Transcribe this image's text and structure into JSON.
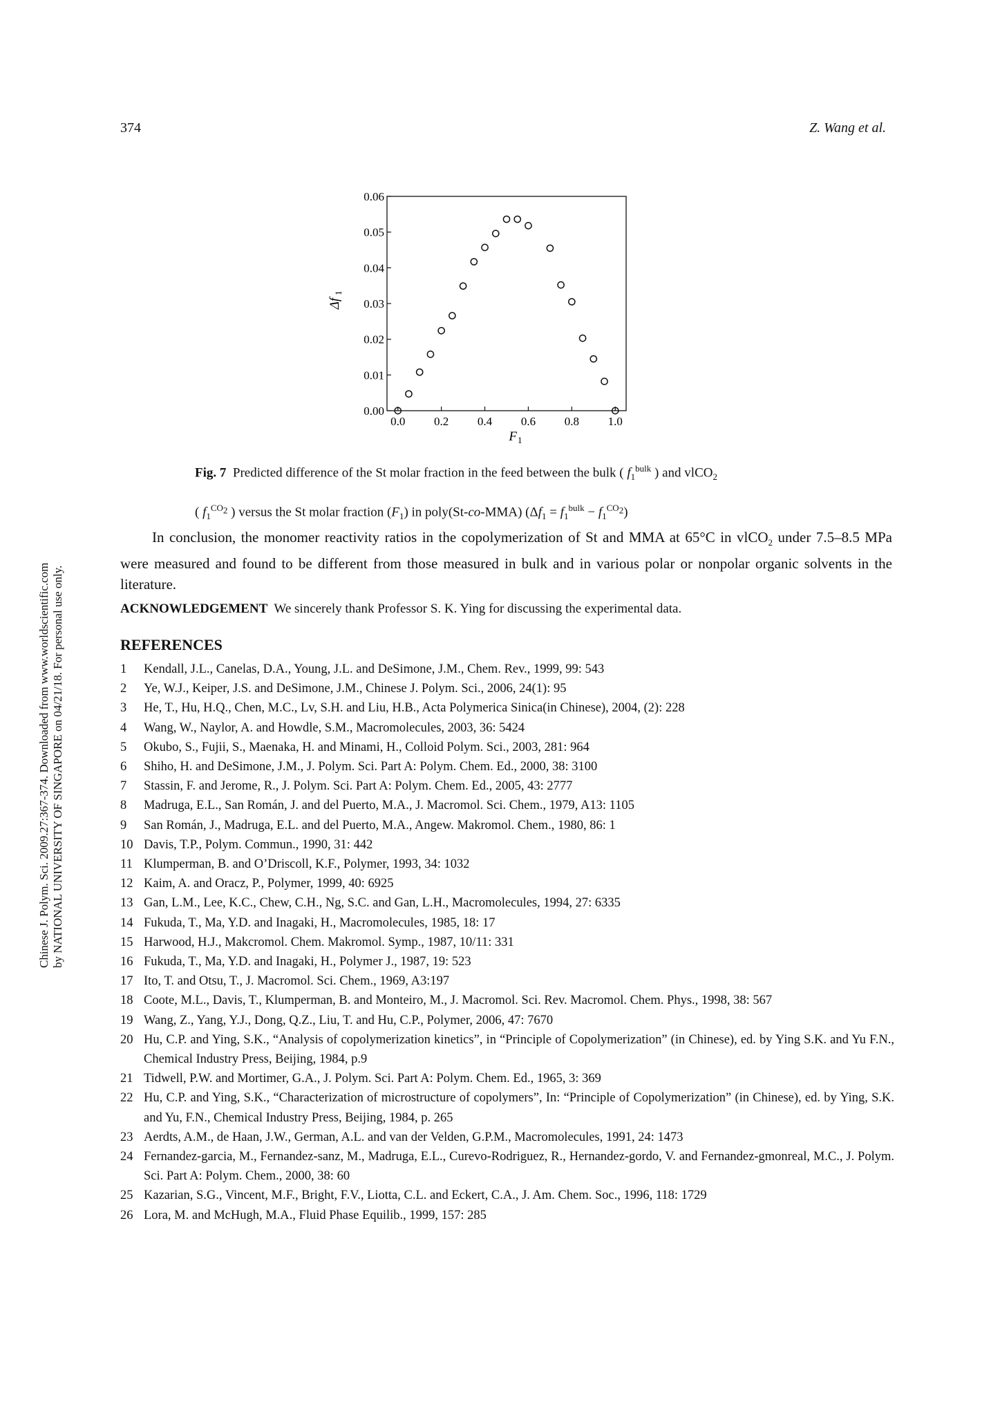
{
  "header": {
    "page_number": "374",
    "author": "Z. Wang et al."
  },
  "sidebar_note": {
    "line1": "Chinese J. Polym. Sci. 2009.27:367-374. Downloaded from www.worldscientific.com",
    "line2": "by NATIONAL UNIVERSITY OF SINGAPORE on 04/21/18. For personal use only."
  },
  "chart_data": {
    "type": "scatter",
    "xlabel": "F",
    "xlabel_sub": "1",
    "ylabel": "Δf",
    "ylabel_sub": "1",
    "xlim": [
      -0.05,
      1.05
    ],
    "ylim": [
      0.0,
      0.06
    ],
    "x_ticks": [
      "0.0",
      "0.2",
      "0.4",
      "0.6",
      "0.8",
      "1.0"
    ],
    "x_tick_values": [
      0.0,
      0.2,
      0.4,
      0.6,
      0.8,
      1.0
    ],
    "y_ticks": [
      "0.00",
      "0.01",
      "0.02",
      "0.03",
      "0.04",
      "0.05",
      "0.06"
    ],
    "y_tick_values": [
      0.0,
      0.01,
      0.02,
      0.03,
      0.04,
      0.05,
      0.06
    ],
    "series": [
      {
        "x": [
          0.0,
          0.05,
          0.1,
          0.15,
          0.2,
          0.25,
          0.3,
          0.35,
          0.4,
          0.45,
          0.5,
          0.55,
          0.6,
          0.7,
          0.75,
          0.8,
          0.85,
          0.9,
          0.95,
          1.0
        ],
        "y": [
          0.0,
          0.0047,
          0.0108,
          0.0158,
          0.0224,
          0.0266,
          0.0349,
          0.0417,
          0.0457,
          0.0496,
          0.0536,
          0.0536,
          0.0518,
          0.0455,
          0.0352,
          0.0305,
          0.0203,
          0.0145,
          0.0082,
          0.0
        ]
      }
    ]
  },
  "caption": {
    "label": "Fig. 7",
    "t1": "Predicted difference of the St molar fraction in the feed between the bulk (",
    "t2": ") and vlCO",
    "t3": "(",
    "t4": ") versus the St molar fraction (",
    "t5": ") in poly(St-",
    "t6": "co",
    "t7": "-MMA) (Δ",
    "t8": " = ",
    "t9": " − ",
    "t10": ")",
    "f": "f",
    "F": "F",
    "sub1": "1",
    "sub2": "2",
    "sup_bulk": "bulk",
    "sup_co2": "CO",
    "sup_co2_sub": "2"
  },
  "conclusion": {
    "text1": "In conclusion, the monomer reactivity ratios in the copolymerization of St and MMA at 65°C in vlCO",
    "sub": "2",
    "text2": " under 7.5–8.5 MPa were measured and found to be different from those measured in bulk and in various polar or nonpolar organic solvents in the literature."
  },
  "acknowledgement": {
    "label": "ACKNOWLEDGEMENT",
    "text": "We sincerely thank Professor S. K. Ying for discussing the experimental data."
  },
  "references_heading": "REFERENCES",
  "references": [
    {
      "n": "1",
      "text": "Kendall, J.L., Canelas, D.A., Young, J.L. and DeSimone, J.M., Chem. Rev., 1999, 99: 543"
    },
    {
      "n": "2",
      "text": "Ye, W.J., Keiper, J.S. and DeSimone, J.M., Chinese J. Polym. Sci., 2006, 24(1): 95"
    },
    {
      "n": "3",
      "text": "He, T., Hu, H.Q., Chen, M.C., Lv, S.H. and Liu, H.B., Acta Polymerica Sinica(in Chinese), 2004, (2): 228"
    },
    {
      "n": "4",
      "text": "Wang, W., Naylor, A. and Howdle, S.M., Macromolecules, 2003, 36: 5424"
    },
    {
      "n": "5",
      "text": "Okubo, S., Fujii, S., Maenaka, H. and Minami, H., Colloid Polym. Sci., 2003, 281: 964"
    },
    {
      "n": "6",
      "text": "Shiho, H. and DeSimone, J.M., J. Polym. Sci. Part A: Polym. Chem. Ed., 2000, 38: 3100"
    },
    {
      "n": "7",
      "text": "Stassin, F. and Jerome, R., J. Polym. Sci. Part A: Polym. Chem. Ed., 2005, 43: 2777"
    },
    {
      "n": "8",
      "text": "Madruga, E.L., San Román, J. and del Puerto, M.A., J. Macromol. Sci. Chem., 1979, A13: 1105"
    },
    {
      "n": "9",
      "text": "San Román, J., Madruga, E.L. and del Puerto, M.A., Angew. Makromol. Chem., 1980, 86: 1"
    },
    {
      "n": "10",
      "text": "Davis, T.P., Polym. Commun., 1990, 31: 442"
    },
    {
      "n": "11",
      "text": "Klumperman, B. and O’Driscoll, K.F., Polymer, 1993, 34: 1032"
    },
    {
      "n": "12",
      "text": "Kaim, A. and Oracz, P., Polymer, 1999, 40: 6925"
    },
    {
      "n": "13",
      "text": "Gan, L.M., Lee, K.C., Chew, C.H., Ng, S.C. and Gan, L.H., Macromolecules, 1994, 27: 6335"
    },
    {
      "n": "14",
      "text": "Fukuda, T., Ma, Y.D. and Inagaki, H., Macromolecules, 1985, 18: 17"
    },
    {
      "n": "15",
      "text": "Harwood, H.J., Makcromol. Chem. Makromol. Symp., 1987, 10/11: 331"
    },
    {
      "n": "16",
      "text": "Fukuda, T., Ma, Y.D. and Inagaki, H., Polymer J., 1987, 19: 523"
    },
    {
      "n": "17",
      "text": "Ito, T. and Otsu, T., J. Macromol. Sci. Chem., 1969, A3:197"
    },
    {
      "n": "18",
      "text": "Coote, M.L., Davis, T., Klumperman, B. and Monteiro, M., J. Macromol. Sci. Rev. Macromol. Chem. Phys., 1998, 38: 567"
    },
    {
      "n": "19",
      "text": "Wang, Z., Yang, Y.J., Dong, Q.Z., Liu, T. and Hu, C.P., Polymer, 2006, 47: 7670"
    },
    {
      "n": "20",
      "text": "Hu, C.P. and Ying, S.K., “Analysis of copolymerization kinetics”, in “Principle of Copolymerization” (in Chinese), ed. by Ying S.K. and Yu F.N., Chemical Industry Press, Beijing, 1984, p.9"
    },
    {
      "n": "21",
      "text": "Tidwell, P.W. and Mortimer, G.A., J. Polym. Sci. Part A: Polym. Chem. Ed., 1965, 3: 369"
    },
    {
      "n": "22",
      "text": "Hu, C.P. and Ying, S.K., “Characterization of microstructure of copolymers”, In: “Principle of Copolymerization” (in Chinese), ed. by Ying, S.K. and Yu, F.N., Chemical Industry Press, Beijing, 1984, p. 265"
    },
    {
      "n": "23",
      "text": "Aerdts, A.M., de Haan, J.W., German, A.L. and van der Velden, G.P.M., Macromolecules, 1991, 24: 1473"
    },
    {
      "n": "24",
      "text": "Fernandez-garcia, M., Fernandez-sanz, M., Madruga, E.L., Curevo-Rodriguez, R., Hernandez-gordo, V. and Fernandez-gmonreal, M.C., J. Polym. Sci. Part A: Polym. Chem., 2000, 38: 60"
    },
    {
      "n": "25",
      "text": "Kazarian, S.G., Vincent, M.F., Bright, F.V., Liotta, C.L. and Eckert, C.A., J. Am. Chem. Soc., 1996, 118: 1729"
    },
    {
      "n": "26",
      "text": "Lora, M. and McHugh, M.A., Fluid Phase Equilib., 1999, 157: 285"
    }
  ]
}
